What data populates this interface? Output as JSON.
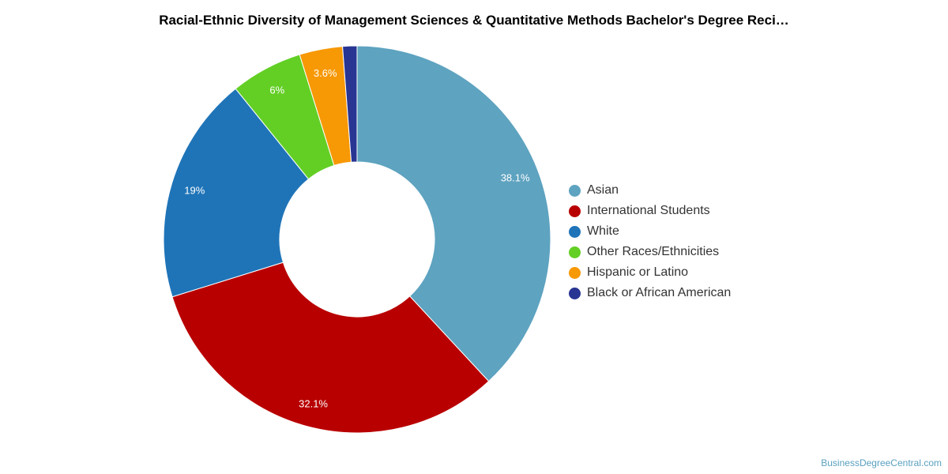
{
  "title": "Racial-Ethnic Diversity of Management Sciences & Quantitative Methods Bachelor's Degree Reci…",
  "watermark": "BusinessDegreeCentral.com",
  "chart_data": {
    "type": "pie",
    "donut": true,
    "title": "Racial-Ethnic Diversity of Management Sciences & Quantitative Methods Bachelor's Degree Reci…",
    "legend_position": "right",
    "categories": [
      "Asian",
      "International Students",
      "White",
      "Other Races/Ethnicities",
      "Hispanic or Latino",
      "Black or African American"
    ],
    "values": [
      38.1,
      32.1,
      19,
      6,
      3.6,
      1.2
    ],
    "data_labels": [
      "38.1%",
      "32.1%",
      "19%",
      "6%",
      "3.6%",
      ""
    ],
    "colors": [
      "#5ea3c0",
      "#b90000",
      "#1f74b8",
      "#63cf25",
      "#f79805",
      "#283593"
    ]
  }
}
